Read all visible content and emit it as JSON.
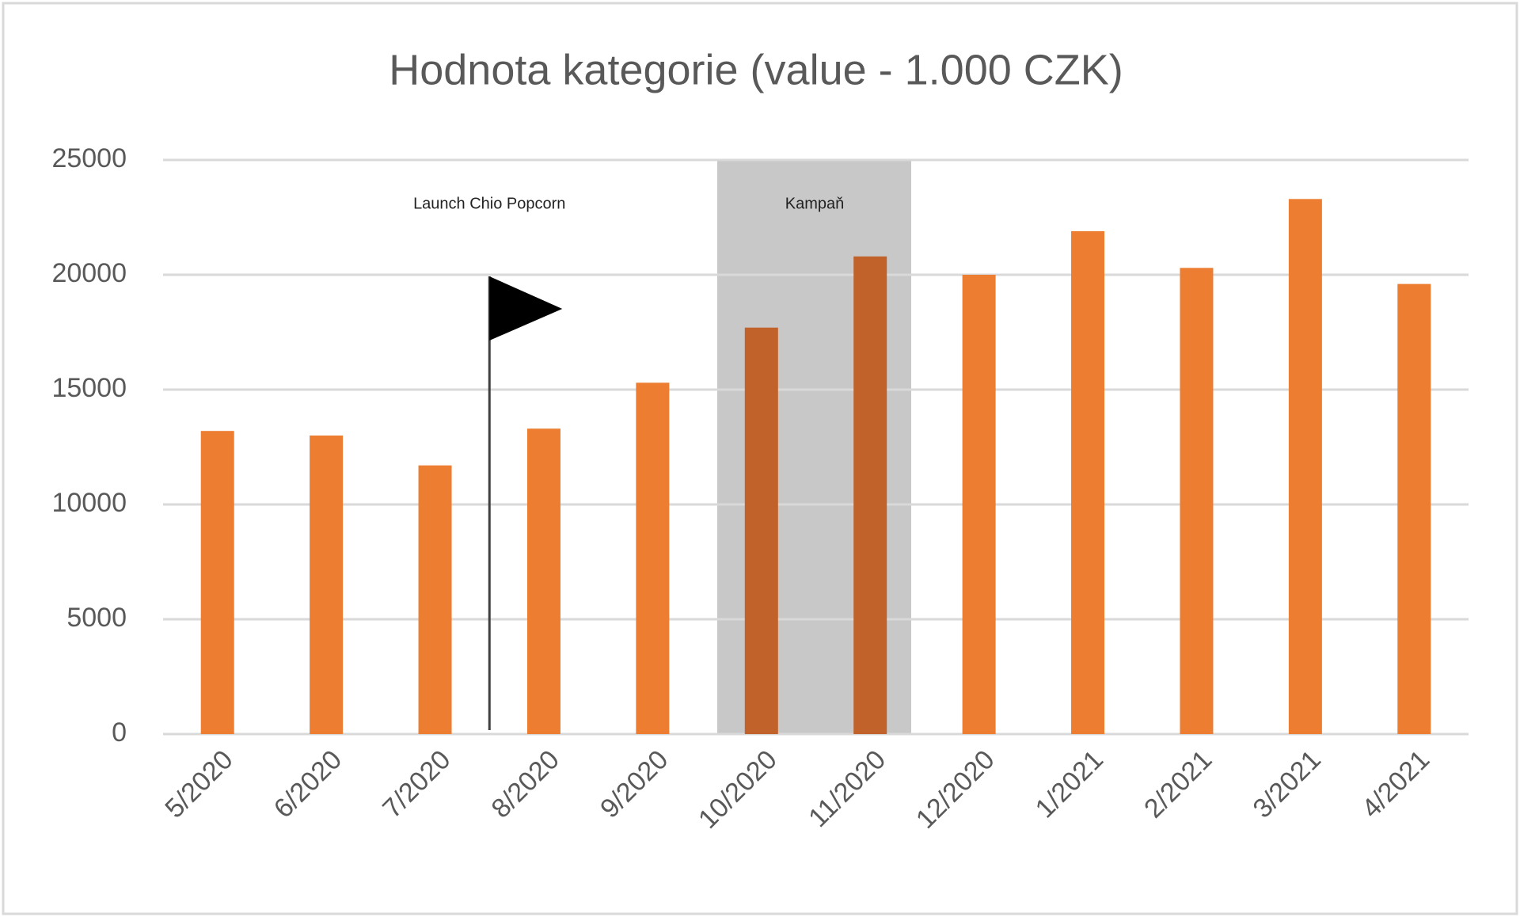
{
  "chart_data": {
    "type": "bar",
    "title": "Hodnota kategorie (value - 1.000 CZK)",
    "categories": [
      "5/2020",
      "6/2020",
      "7/2020",
      "8/2020",
      "9/2020",
      "10/2020",
      "11/2020",
      "12/2020",
      "1/2021",
      "2/2021",
      "3/2021",
      "4/2021"
    ],
    "values": [
      13200,
      13000,
      11700,
      13300,
      15300,
      17700,
      20800,
      20000,
      21900,
      20300,
      23300,
      19600
    ],
    "color": "#ed7d31",
    "highlight_color": "#c0622a",
    "ylim": [
      0,
      25000
    ],
    "yticks": [
      0,
      5000,
      10000,
      15000,
      20000,
      25000
    ],
    "grid": true,
    "annotations": [
      "Launch Chio Popcorn",
      "Kampaň"
    ]
  }
}
